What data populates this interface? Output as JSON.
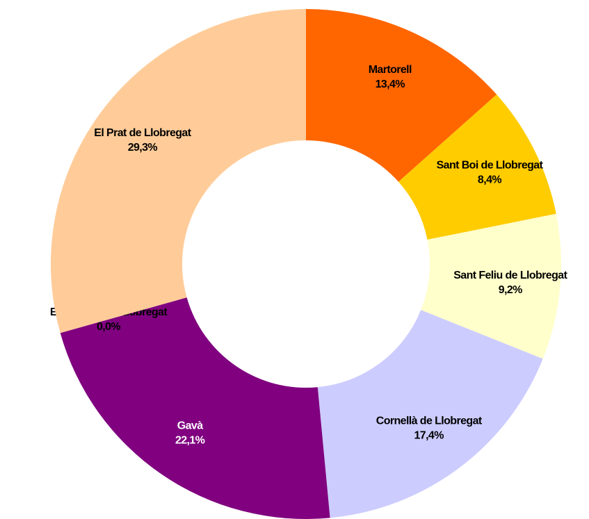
{
  "chart_data": {
    "type": "donut",
    "categories": [
      "Martorell",
      "Sant Boi de Llobregat",
      "Sant Feliu de Llobregat",
      "Cornellà de Llobregat",
      "Gavà",
      "Esplugues de Llobregat",
      "El Prat de Llobregat"
    ],
    "values": [
      13.4,
      8.4,
      9.2,
      17.4,
      22.1,
      0.0,
      29.3
    ],
    "value_labels": [
      "13,4%",
      "8,4%",
      "9,2%",
      "17,4%",
      "22,1%",
      "0,0%",
      "29,3%"
    ],
    "colors": [
      "#ff6600",
      "#ffcc00",
      "#ffffcc",
      "#ccccff",
      "#800080",
      "#99ccff",
      "#ffcc99"
    ]
  }
}
